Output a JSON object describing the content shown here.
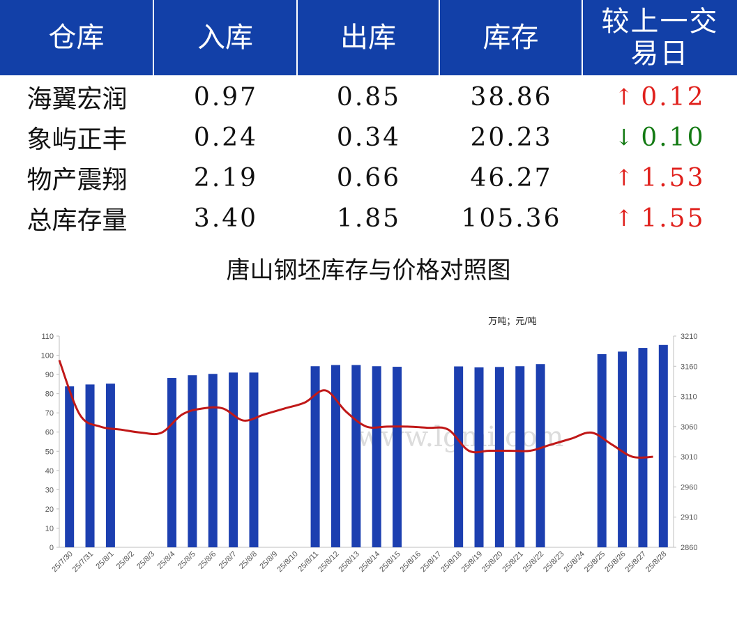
{
  "table": {
    "headers": [
      "仓库",
      "入库",
      "出库",
      "库存",
      "较上一交易日"
    ],
    "rows": [
      {
        "name": "海翼宏润",
        "in": "0.97",
        "out": "0.85",
        "stock": "38.86",
        "dir": "up",
        "arrow": "↑",
        "change": "0.12"
      },
      {
        "name": "象屿正丰",
        "in": "0.24",
        "out": "0.34",
        "stock": "20.23",
        "dir": "down",
        "arrow": "↓",
        "change": "0.10"
      },
      {
        "name": "物产震翔",
        "in": "2.19",
        "out": "0.66",
        "stock": "46.27",
        "dir": "up",
        "arrow": "↑",
        "change": "1.53"
      },
      {
        "name": "总库存量",
        "in": "3.40",
        "out": "1.85",
        "stock": "105.36",
        "dir": "up",
        "arrow": "↑",
        "change": "1.55"
      }
    ],
    "colors": {
      "header_bg": "#1240a8",
      "up": "#e0201c",
      "down": "#137a13"
    }
  },
  "chart_data": {
    "type": "bar",
    "title": "唐山钢坯库存与价格对照图",
    "unit_note": "万吨；元/吨",
    "watermark": "www.lgmi.com",
    "categories": [
      "25/7/30",
      "25/7/31",
      "25/8/1",
      "25/8/2",
      "25/8/3",
      "25/8/4",
      "25/8/5",
      "25/8/6",
      "25/8/7",
      "25/8/8",
      "25/8/9",
      "25/8/10",
      "25/8/11",
      "25/8/12",
      "25/8/13",
      "25/8/14",
      "25/8/15",
      "25/8/16",
      "25/8/17",
      "25/8/18",
      "25/8/19",
      "25/8/20",
      "25/8/21",
      "25/8/22",
      "25/8/23",
      "25/8/24",
      "25/8/25",
      "25/8/26",
      "25/8/27",
      "25/8/28"
    ],
    "series": [
      {
        "kind": "bar",
        "axis": "left",
        "color": "#1c3fb0",
        "values": [
          83.8,
          84.8,
          85.2,
          null,
          null,
          88.2,
          89.6,
          90.3,
          91.0,
          91.0,
          null,
          null,
          94.3,
          94.9,
          94.9,
          94.3,
          94.0,
          null,
          null,
          94.2,
          93.7,
          93.9,
          94.3,
          95.4,
          null,
          null,
          100.6,
          101.9,
          103.8,
          105.36
        ]
      },
      {
        "kind": "line",
        "axis": "right",
        "color": "#c01818",
        "values": [
          3170,
          3080,
          3060,
          3055,
          3050,
          3050,
          3080,
          3090,
          3090,
          3070,
          3080,
          3090,
          3100,
          3120,
          3085,
          3060,
          3060,
          3060,
          3058,
          3055,
          3020,
          3020,
          3020,
          3020,
          3030,
          3040,
          3050,
          3030,
          3010,
          3010
        ]
      }
    ],
    "y_left": {
      "min": 0,
      "max": 110,
      "ticks": [
        0,
        10,
        20,
        30,
        40,
        50,
        60,
        70,
        80,
        90,
        100,
        110
      ]
    },
    "y_right": {
      "min": 2860,
      "max": 3210,
      "ticks": [
        2860,
        2910,
        2960,
        3010,
        3060,
        3110,
        3160,
        3210
      ]
    },
    "grid": false,
    "legend": "none"
  }
}
